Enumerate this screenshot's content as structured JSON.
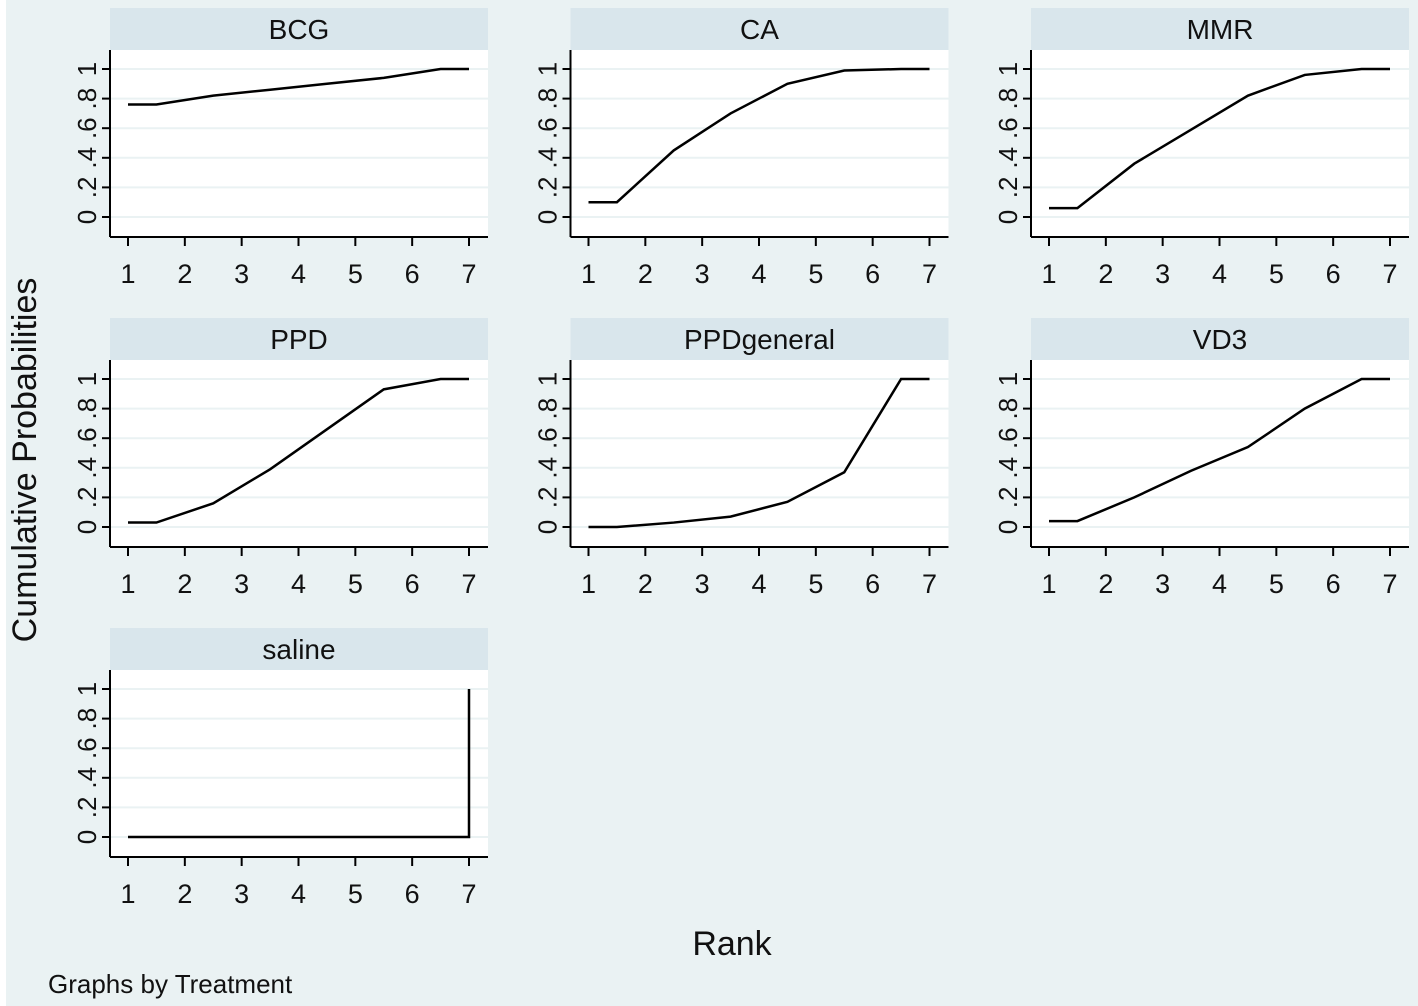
{
  "chart_data": {
    "type": "line",
    "note_label": "Graphs by Treatment",
    "xlabel": "Rank",
    "ylabel": "Cumulative Probabilities",
    "x_ticks": [
      "1",
      "2",
      "3",
      "4",
      "5",
      "6",
      "7"
    ],
    "y_ticks": [
      "0",
      ".2",
      ".4",
      ".6",
      ".8",
      "1"
    ],
    "xlim": [
      1,
      7
    ],
    "ylim": [
      0,
      1
    ],
    "grid": true,
    "colors": {
      "background": "#eaf2f3",
      "panel": "#ffffff",
      "strip": "#d9e6ec",
      "line": "#000000",
      "grid": "#eaf2f3"
    },
    "panels": [
      {
        "title": "BCG",
        "points": [
          [
            1,
            0.76
          ],
          [
            1.5,
            0.76
          ],
          [
            2.5,
            0.82
          ],
          [
            3.5,
            0.86
          ],
          [
            4.5,
            0.9
          ],
          [
            5.5,
            0.94
          ],
          [
            6.5,
            1.0
          ],
          [
            7,
            1.0
          ]
        ]
      },
      {
        "title": "CA",
        "points": [
          [
            1,
            0.1
          ],
          [
            1.5,
            0.1
          ],
          [
            2.5,
            0.45
          ],
          [
            3.5,
            0.7
          ],
          [
            4.5,
            0.9
          ],
          [
            5.5,
            0.99
          ],
          [
            6.5,
            1.0
          ],
          [
            7,
            1.0
          ]
        ]
      },
      {
        "title": "MMR",
        "points": [
          [
            1,
            0.06
          ],
          [
            1.5,
            0.06
          ],
          [
            2.5,
            0.36
          ],
          [
            3.5,
            0.59
          ],
          [
            4.5,
            0.82
          ],
          [
            5.5,
            0.96
          ],
          [
            6.5,
            1.0
          ],
          [
            7,
            1.0
          ]
        ]
      },
      {
        "title": "PPD",
        "points": [
          [
            1,
            0.03
          ],
          [
            1.5,
            0.03
          ],
          [
            2.5,
            0.16
          ],
          [
            3.5,
            0.39
          ],
          [
            4.5,
            0.66
          ],
          [
            5.5,
            0.93
          ],
          [
            6.5,
            1.0
          ],
          [
            7,
            1.0
          ]
        ]
      },
      {
        "title": "PPDgeneral",
        "points": [
          [
            1,
            0.0
          ],
          [
            1.5,
            0.0
          ],
          [
            2.5,
            0.03
          ],
          [
            3.5,
            0.07
          ],
          [
            4.5,
            0.17
          ],
          [
            5.5,
            0.37
          ],
          [
            6.5,
            1.0
          ],
          [
            7,
            1.0
          ]
        ]
      },
      {
        "title": "VD3",
        "points": [
          [
            1,
            0.04
          ],
          [
            1.5,
            0.04
          ],
          [
            2.5,
            0.2
          ],
          [
            3.5,
            0.38
          ],
          [
            4.5,
            0.54
          ],
          [
            5.5,
            0.8
          ],
          [
            6.5,
            1.0
          ],
          [
            7,
            1.0
          ]
        ]
      },
      {
        "title": "saline",
        "points": [
          [
            1,
            0.0
          ],
          [
            7,
            0.0
          ],
          [
            7,
            1.0
          ]
        ]
      }
    ]
  }
}
